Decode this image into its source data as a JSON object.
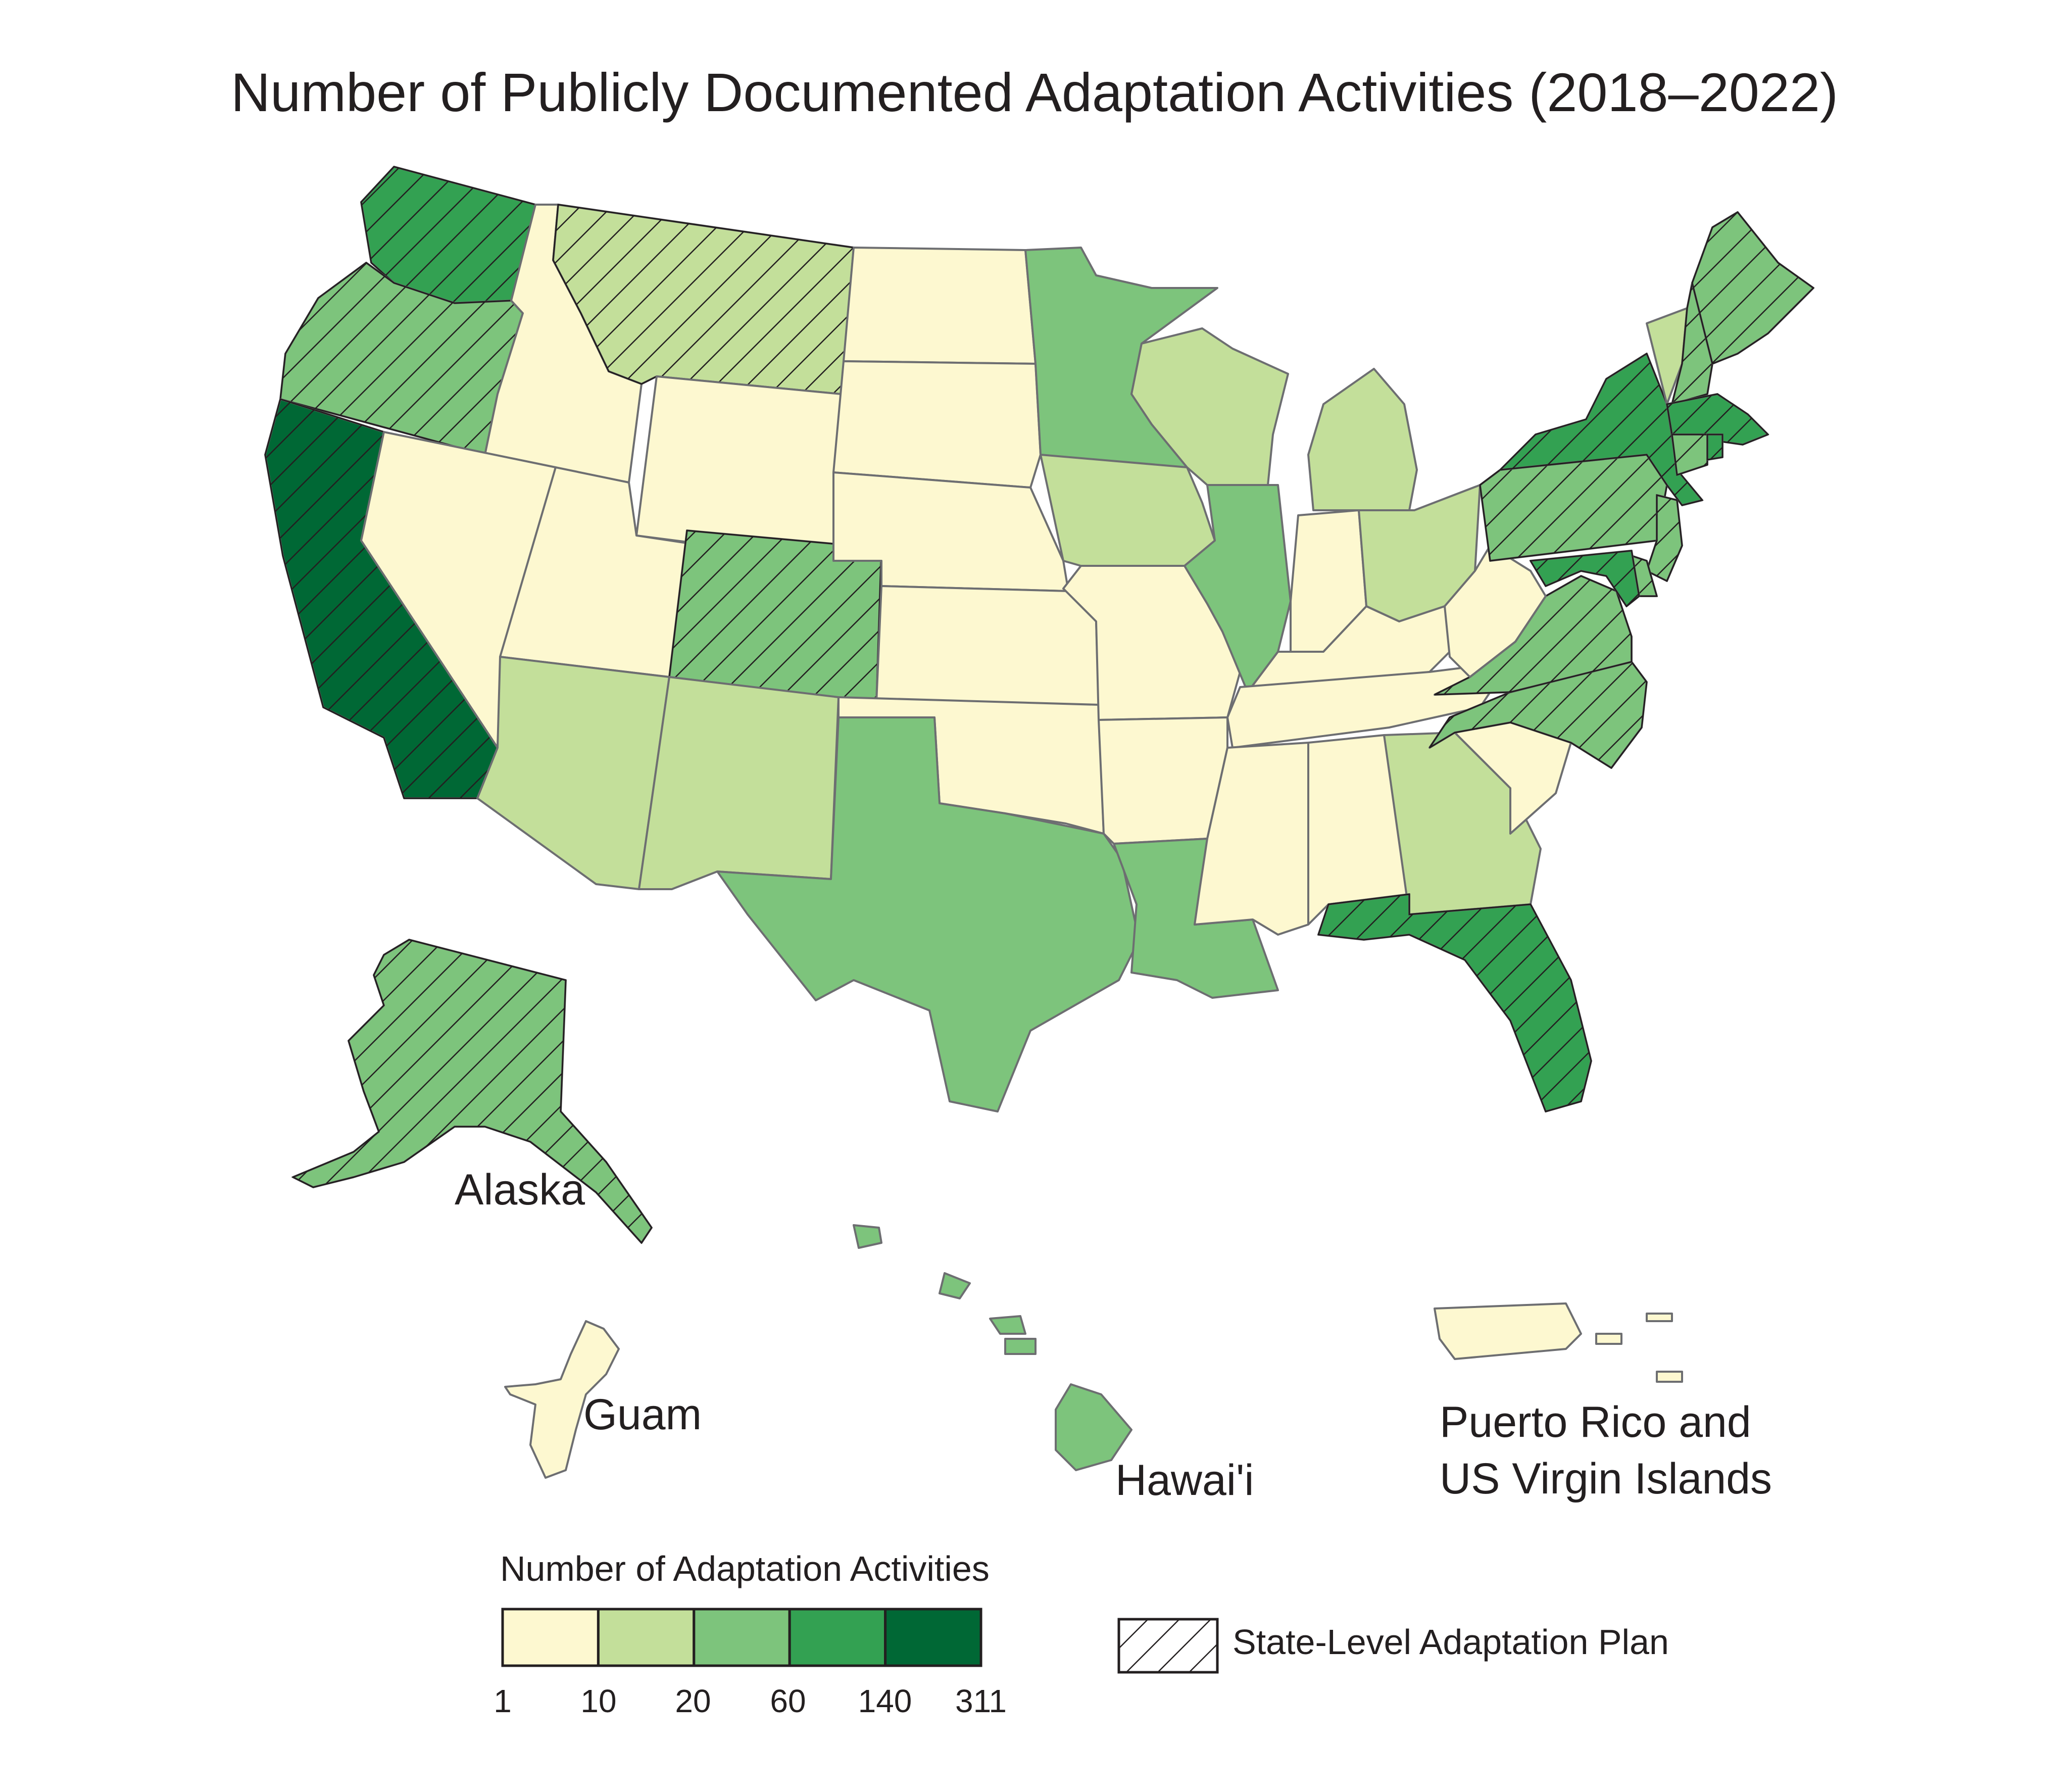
{
  "title": "Number of Publicly Documented Adaptation Activities (2018–2022)",
  "labels": {
    "alaska": "Alaska",
    "guam": "Guam",
    "hawaii": "Hawai'i",
    "pr_line1": "Puerto Rico and",
    "pr_line2": "US Virgin Islands"
  },
  "legend": {
    "title": "Number of Adaptation Activities",
    "breaks": [
      "1",
      "10",
      "20",
      "60",
      "140",
      "311"
    ],
    "colors": [
      "#fdf8d0",
      "#c3df9a",
      "#7dc47c",
      "#33a152",
      "#006835"
    ],
    "plan_label": "State-Level Adaptation Plan"
  },
  "map_data": {
    "hatched_meaning": "State-Level Adaptation Plan",
    "states": [
      {
        "name": "Washington",
        "class": 4,
        "plan": true
      },
      {
        "name": "Oregon",
        "class": 3,
        "plan": true
      },
      {
        "name": "California",
        "class": 5,
        "plan": true
      },
      {
        "name": "Idaho",
        "class": 1,
        "plan": false
      },
      {
        "name": "Nevada",
        "class": 1,
        "plan": false
      },
      {
        "name": "Montana",
        "class": 2,
        "plan": true
      },
      {
        "name": "Wyoming",
        "class": 1,
        "plan": false
      },
      {
        "name": "Utah",
        "class": 1,
        "plan": false
      },
      {
        "name": "Colorado",
        "class": 3,
        "plan": true
      },
      {
        "name": "Arizona",
        "class": 2,
        "plan": false
      },
      {
        "name": "New Mexico",
        "class": 2,
        "plan": false
      },
      {
        "name": "North Dakota",
        "class": 1,
        "plan": false
      },
      {
        "name": "South Dakota",
        "class": 1,
        "plan": false
      },
      {
        "name": "Nebraska",
        "class": 1,
        "plan": false
      },
      {
        "name": "Kansas",
        "class": 1,
        "plan": false
      },
      {
        "name": "Oklahoma",
        "class": 1,
        "plan": false
      },
      {
        "name": "Texas",
        "class": 3,
        "plan": false
      },
      {
        "name": "Minnesota",
        "class": 3,
        "plan": false
      },
      {
        "name": "Iowa",
        "class": 2,
        "plan": false
      },
      {
        "name": "Missouri",
        "class": 1,
        "plan": false
      },
      {
        "name": "Arkansas",
        "class": 1,
        "plan": false
      },
      {
        "name": "Louisiana",
        "class": 3,
        "plan": false
      },
      {
        "name": "Wisconsin",
        "class": 2,
        "plan": false
      },
      {
        "name": "Illinois",
        "class": 3,
        "plan": false
      },
      {
        "name": "Michigan",
        "class": 2,
        "plan": false
      },
      {
        "name": "Indiana",
        "class": 1,
        "plan": false
      },
      {
        "name": "Ohio",
        "class": 2,
        "plan": false
      },
      {
        "name": "Kentucky",
        "class": 1,
        "plan": false
      },
      {
        "name": "Tennessee",
        "class": 1,
        "plan": false
      },
      {
        "name": "Mississippi",
        "class": 1,
        "plan": false
      },
      {
        "name": "Alabama",
        "class": 1,
        "plan": false
      },
      {
        "name": "Georgia",
        "class": 2,
        "plan": false
      },
      {
        "name": "Florida",
        "class": 4,
        "plan": true
      },
      {
        "name": "South Carolina",
        "class": 1,
        "plan": false
      },
      {
        "name": "North Carolina",
        "class": 3,
        "plan": true
      },
      {
        "name": "Virginia",
        "class": 3,
        "plan": true
      },
      {
        "name": "West Virginia",
        "class": 1,
        "plan": false
      },
      {
        "name": "Pennsylvania",
        "class": 3,
        "plan": true
      },
      {
        "name": "New York",
        "class": 4,
        "plan": true
      },
      {
        "name": "Vermont",
        "class": 2,
        "plan": false
      },
      {
        "name": "New Hampshire",
        "class": 3,
        "plan": true
      },
      {
        "name": "Maine",
        "class": 3,
        "plan": true
      },
      {
        "name": "Massachusetts",
        "class": 4,
        "plan": true
      },
      {
        "name": "Connecticut",
        "class": 3,
        "plan": true
      },
      {
        "name": "Rhode Island",
        "class": 4,
        "plan": true
      },
      {
        "name": "New Jersey",
        "class": 3,
        "plan": true
      },
      {
        "name": "Delaware",
        "class": 3,
        "plan": true
      },
      {
        "name": "Maryland",
        "class": 4,
        "plan": true
      },
      {
        "name": "Alaska",
        "class": 3,
        "plan": true
      },
      {
        "name": "Hawai'i",
        "class": 3,
        "plan": false
      },
      {
        "name": "Guam",
        "class": 1,
        "plan": false
      },
      {
        "name": "Puerto Rico and US Virgin Islands",
        "class": 1,
        "plan": false
      }
    ]
  }
}
